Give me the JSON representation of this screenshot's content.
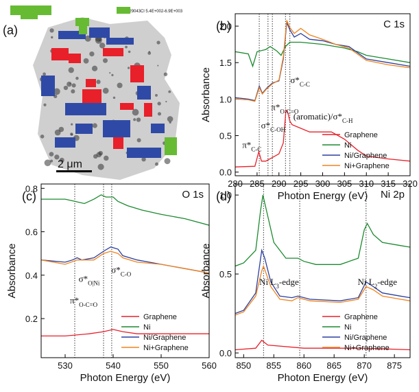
{
  "image_panel": {
    "label": "(a)",
    "scale_bar": "2 μm",
    "header": "81.50529043Cl 5.4E+002-6.9E+003"
  },
  "chart_data": [
    {
      "type": "line",
      "panel_label": "(b)",
      "title": "C 1s",
      "x_label": "Photon Energy (eV)",
      "y_label": "Absorbance",
      "xlim": [
        280,
        320
      ],
      "ylim": [
        -0.05,
        2.17
      ],
      "xticks": [
        280,
        285,
        290,
        295,
        300,
        305,
        310,
        315,
        320
      ],
      "yticks": [
        {
          "value": 0,
          "label": "0.0"
        },
        0.5,
        {
          "value": 1,
          "label": "1.0"
        },
        1.5,
        {
          "value": 2,
          "label": "2.0"
        }
      ],
      "vlines": [
        285.5,
        287.5,
        288.5,
        291.5,
        292.5
      ],
      "legend": "lower right",
      "annotations": [
        {
          "main": "π*",
          "sub": "C-C"
        },
        {
          "main": "σ*",
          "sub": "C-OH"
        },
        {
          "main": "π*",
          "sub": "O-C=O"
        },
        {
          "main": "(aromatic)/σ*",
          "sub": "C-H"
        },
        {
          "main": "σ*",
          "sub": "C-C"
        }
      ],
      "series": [
        {
          "name": "Graphene",
          "color": "#e8202a",
          "x": [
            280,
            284.5,
            285.4,
            286,
            287,
            288.5,
            290,
            291,
            291.6,
            292,
            292.5,
            293,
            295,
            297,
            300,
            302,
            305,
            308,
            310,
            315,
            320
          ],
          "values": [
            0.07,
            0.08,
            0.28,
            0.15,
            0.15,
            0.2,
            0.25,
            0.4,
            0.85,
            0.82,
            0.7,
            0.65,
            0.6,
            0.55,
            0.55,
            0.55,
            0.45,
            0.3,
            0.22,
            0.18,
            0.15
          ]
        },
        {
          "name": "Ni",
          "color": "#1a8a2e",
          "x": [
            280,
            283,
            284,
            284.5,
            285,
            287,
            288,
            289.5,
            290.5,
            291.5,
            292.5,
            295,
            300,
            305,
            308,
            310,
            315,
            320
          ],
          "values": [
            1.65,
            1.62,
            1.45,
            1.55,
            1.65,
            1.68,
            1.72,
            1.66,
            1.6,
            1.72,
            1.78,
            1.78,
            1.75,
            1.7,
            1.65,
            1.6,
            1.55,
            1.5
          ]
        },
        {
          "name": "Ni/Graphene",
          "color": "#2a3fa0",
          "x": [
            280,
            283,
            284.5,
            285.5,
            286.2,
            287.2,
            288.5,
            290,
            291,
            291.8,
            292.5,
            293.5,
            295,
            297,
            300,
            303,
            306,
            310,
            315,
            320
          ],
          "values": [
            1.02,
            1.0,
            0.98,
            1.18,
            1.08,
            1.15,
            1.22,
            1.25,
            1.55,
            2.05,
            1.95,
            1.85,
            1.9,
            1.82,
            1.8,
            1.75,
            1.72,
            1.55,
            1.5,
            1.45
          ]
        },
        {
          "name": "Ni+Graphene",
          "color": "#f0831e",
          "x": [
            280,
            283,
            284.5,
            285.5,
            286.2,
            287.2,
            288.5,
            290,
            291,
            291.8,
            292.5,
            293.5,
            295,
            297,
            300,
            303,
            306,
            310,
            315,
            320
          ],
          "values": [
            1.0,
            0.99,
            0.97,
            1.16,
            1.07,
            1.14,
            1.21,
            1.26,
            1.58,
            2.08,
            1.98,
            1.9,
            1.97,
            1.88,
            1.82,
            1.75,
            1.7,
            1.53,
            1.47,
            1.43
          ]
        }
      ]
    },
    {
      "type": "line",
      "panel_label": "(c)",
      "title": "O 1s",
      "x_label": "Photon Energy (eV)",
      "y_label": "Absorbance",
      "xlim": [
        525,
        560
      ],
      "ylim": [
        0.02,
        0.82
      ],
      "xticks": [
        530,
        540,
        550,
        560
      ],
      "yticks": [
        0.2,
        0.4,
        0.6,
        0.8
      ],
      "vlines": [
        532,
        538,
        539.7
      ],
      "legend": "lower right",
      "annotations": [
        {
          "main": "π*",
          "sub": "O-C=O"
        },
        {
          "main": "σ*",
          "sub": "O|Ni"
        },
        {
          "main": "σ*",
          "sub": "C-O"
        }
      ],
      "series": [
        {
          "name": "Graphene",
          "color": "#e8202a",
          "x": [
            525,
            530,
            535,
            538,
            540,
            542,
            545,
            550,
            555,
            560
          ],
          "values": [
            0.12,
            0.12,
            0.13,
            0.14,
            0.15,
            0.14,
            0.13,
            0.13,
            0.13,
            0.13
          ]
        },
        {
          "name": "Ni",
          "color": "#1a8a2e",
          "x": [
            525,
            530,
            532,
            534,
            536,
            537.5,
            538.5,
            540,
            541,
            543,
            546,
            550,
            555,
            560
          ],
          "values": [
            0.75,
            0.75,
            0.74,
            0.73,
            0.75,
            0.77,
            0.76,
            0.76,
            0.74,
            0.72,
            0.7,
            0.68,
            0.66,
            0.63
          ]
        },
        {
          "name": "Ni/Graphene",
          "color": "#2a3fa0",
          "x": [
            525,
            530,
            531.5,
            532.5,
            533.5,
            536,
            538,
            539.5,
            541,
            542,
            545,
            550,
            555,
            560
          ],
          "values": [
            0.47,
            0.46,
            0.47,
            0.48,
            0.47,
            0.48,
            0.51,
            0.53,
            0.52,
            0.49,
            0.47,
            0.45,
            0.43,
            0.41
          ]
        },
        {
          "name": "Ni+Graphene",
          "color": "#f0831e",
          "x": [
            525,
            530,
            532.5,
            536,
            538,
            539.5,
            541,
            542,
            545,
            550,
            555,
            560
          ],
          "values": [
            0.47,
            0.45,
            0.47,
            0.47,
            0.5,
            0.51,
            0.5,
            0.48,
            0.46,
            0.45,
            0.43,
            0.41
          ]
        }
      ]
    },
    {
      "type": "line",
      "panel_label": "(d)",
      "title": "Ni 2p",
      "x_label": "Photon Energy (eV)",
      "y_label": "Absorbance",
      "xlim": [
        848.6,
        877.6
      ],
      "ylim": [
        -0.03,
        1.07
      ],
      "xticks": [
        850,
        855,
        860,
        865,
        870,
        875
      ],
      "yticks": [
        {
          "value": 0,
          "label": "0.0"
        },
        0.5,
        {
          "value": 1,
          "label": "1.0"
        }
      ],
      "vlines": [
        853.3,
        859.3,
        870.3
      ],
      "legend": "lower right",
      "annotations": [
        {
          "main": "Ni L",
          "sub": "3",
          "tail": "-edge"
        },
        {
          "main": "Ni L",
          "sub": "2",
          "tail": "-edge"
        }
      ],
      "series": [
        {
          "name": "Graphene",
          "color": "#e8202a",
          "x": [
            848.6,
            852,
            853,
            854,
            860,
            870,
            877.6
          ],
          "values": [
            0.02,
            0.03,
            0.08,
            0.05,
            0.03,
            0.03,
            0.02
          ]
        },
        {
          "name": "Ni",
          "color": "#1a8a2e",
          "x": [
            848.6,
            850,
            852,
            852.8,
            853.2,
            853.8,
            855,
            857,
            859,
            860,
            862,
            866,
            869,
            870,
            870.5,
            871.5,
            873,
            876,
            877.6
          ],
          "values": [
            0.55,
            0.57,
            0.65,
            0.9,
            1.0,
            0.9,
            0.7,
            0.6,
            0.6,
            0.58,
            0.56,
            0.56,
            0.6,
            0.78,
            0.82,
            0.75,
            0.7,
            0.68,
            0.67
          ]
        },
        {
          "name": "Ni/Graphene",
          "color": "#2a3fa0",
          "x": [
            848.6,
            850,
            852,
            853,
            853.5,
            854.5,
            856,
            858,
            859,
            861,
            866,
            869,
            870.3,
            871.5,
            873,
            876,
            877.6
          ],
          "values": [
            0.25,
            0.27,
            0.38,
            0.65,
            0.6,
            0.45,
            0.36,
            0.35,
            0.36,
            0.34,
            0.33,
            0.35,
            0.45,
            0.42,
            0.38,
            0.36,
            0.35
          ]
        },
        {
          "name": "Ni+Graphene",
          "color": "#f0831e",
          "x": [
            848.6,
            850,
            852,
            853,
            853.3,
            854.5,
            856,
            858,
            859,
            861,
            866,
            869,
            870.3,
            871.5,
            873,
            876,
            877.6
          ],
          "values": [
            0.24,
            0.26,
            0.36,
            0.52,
            0.55,
            0.42,
            0.34,
            0.33,
            0.35,
            0.33,
            0.32,
            0.34,
            0.42,
            0.4,
            0.36,
            0.34,
            0.33
          ]
        }
      ]
    }
  ]
}
